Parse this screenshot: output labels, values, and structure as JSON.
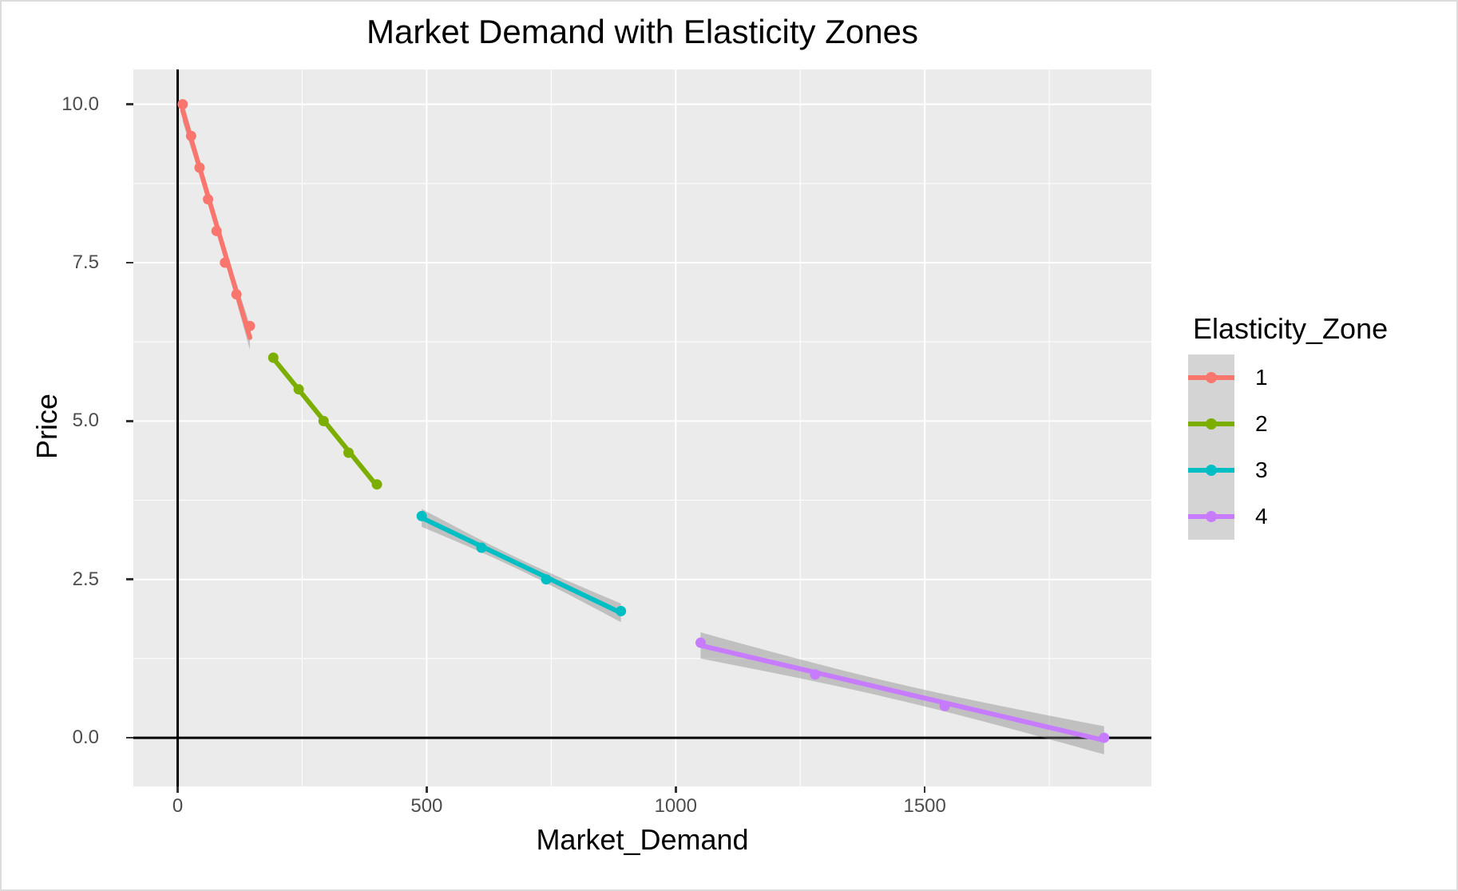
{
  "chart_data": {
    "type": "scatter",
    "title": "Market Demand with Elasticity Zones",
    "xlabel": "Market_Demand",
    "ylabel": "Price",
    "xlim": [
      -89,
      1955
    ],
    "ylim": [
      -0.768,
      10.55
    ],
    "x_ticks": [
      0,
      500,
      1000,
      1500
    ],
    "x_tick_labels": [
      "0",
      "500",
      "1000",
      "1500"
    ],
    "x_minor_ticks": [
      250,
      750,
      1250,
      1750
    ],
    "y_ticks": [
      0,
      2.5,
      5,
      7.5,
      10
    ],
    "y_tick_labels": [
      "0.0",
      "2.5",
      "5.0",
      "7.5",
      "10.0"
    ],
    "y_minor_ticks": [
      1.25,
      3.75,
      6.25,
      8.75
    ],
    "grid": "on",
    "panel_bg": "#EBEBEB",
    "grid_color": "#FFFFFF",
    "axis_line_color": "#000000",
    "tick_color": "#333333",
    "tick_label_color": "#4D4D4D",
    "ribbon_color": "rgba(127,127,127,0.4)",
    "smooth": {
      "method": "lm",
      "ci": 0.95
    },
    "series": [
      {
        "name": "1",
        "color": "#F8766D",
        "points": [
          [
            10,
            10.0
          ],
          [
            27,
            9.5
          ],
          [
            44,
            9.0
          ],
          [
            61,
            8.5
          ],
          [
            78,
            8.0
          ],
          [
            95,
            7.5
          ],
          [
            118,
            7.0
          ],
          [
            145,
            6.5
          ]
        ]
      },
      {
        "name": "2",
        "color": "#7CAE00",
        "points": [
          [
            192,
            6.0
          ],
          [
            243,
            5.5
          ],
          [
            293,
            5.0
          ],
          [
            343,
            4.5
          ],
          [
            400,
            4.0
          ]
        ]
      },
      {
        "name": "3",
        "color": "#00BFC4",
        "points": [
          [
            490,
            3.5
          ],
          [
            610,
            3.0
          ],
          [
            740,
            2.5
          ],
          [
            890,
            2.0
          ]
        ]
      },
      {
        "name": "4",
        "color": "#C77CFF",
        "points": [
          [
            1050,
            1.5
          ],
          [
            1280,
            1.0
          ],
          [
            1540,
            0.5
          ],
          [
            1860,
            0.0
          ]
        ]
      }
    ],
    "legend": {
      "title": "Elasticity_Zone",
      "position": "right",
      "entries": [
        {
          "label": "1",
          "color": "#F8766D"
        },
        {
          "label": "2",
          "color": "#7CAE00"
        },
        {
          "label": "3",
          "color": "#00BFC4"
        },
        {
          "label": "4",
          "color": "#C77CFF"
        }
      ]
    }
  }
}
